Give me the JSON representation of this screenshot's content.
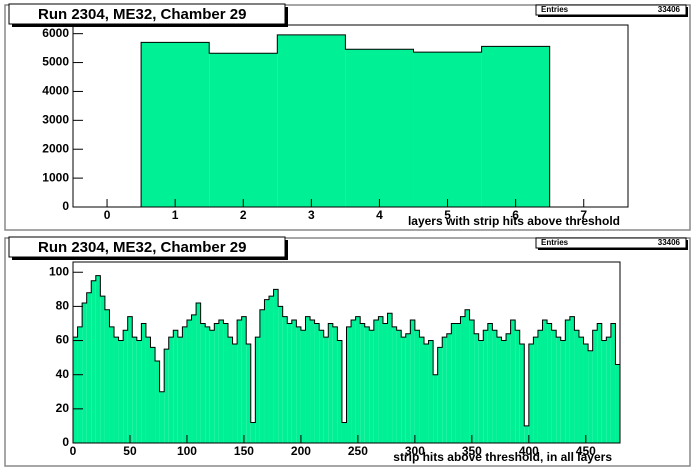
{
  "chart_data": [
    {
      "type": "histogram",
      "title": "Run 2304, ME32, Chamber 29",
      "stats_label": "Entries",
      "entries": 33406,
      "x_label": "layers with strip hits above threshold",
      "bins": [
        -0.5,
        0.5,
        1.5,
        2.5,
        3.5,
        4.5,
        5.5,
        6.5,
        7.5
      ],
      "values": [
        0,
        5700,
        5320,
        5960,
        5460,
        5360,
        5560,
        0
      ],
      "color": "#00f096",
      "xlim": [
        -0.5,
        7.65
      ],
      "xticks": [
        0,
        1,
        2,
        3,
        4,
        5,
        6,
        7
      ],
      "ylim": [
        0,
        6300
      ],
      "yticks": [
        0,
        1000,
        2000,
        3000,
        4000,
        5000,
        6000
      ]
    },
    {
      "type": "histogram",
      "title": "Run 2304, ME32, Chamber 29",
      "stats_label": "Entries",
      "entries": 33406,
      "x_label": "strip hits above threshold, in all layers",
      "bins": [
        0,
        4,
        8,
        12,
        16,
        20,
        24,
        28,
        32,
        36,
        40,
        44,
        48,
        52,
        56,
        60,
        64,
        68,
        72,
        76,
        80,
        84,
        88,
        92,
        96,
        100,
        104,
        108,
        112,
        116,
        120,
        124,
        128,
        132,
        136,
        140,
        144,
        148,
        152,
        156,
        160,
        164,
        168,
        172,
        176,
        180,
        184,
        188,
        192,
        196,
        200,
        204,
        208,
        212,
        216,
        220,
        224,
        228,
        232,
        236,
        240,
        244,
        248,
        252,
        256,
        260,
        264,
        268,
        272,
        276,
        280,
        284,
        288,
        292,
        296,
        300,
        304,
        308,
        312,
        316,
        320,
        324,
        328,
        332,
        336,
        340,
        344,
        348,
        352,
        356,
        360,
        364,
        368,
        372,
        376,
        380,
        384,
        388,
        392,
        396,
        400,
        404,
        408,
        412,
        416,
        420,
        424,
        428,
        432,
        436,
        440,
        444,
        448,
        452,
        456,
        460,
        464,
        468,
        472,
        476,
        480
      ],
      "values": [
        62,
        68,
        82,
        88,
        95,
        98,
        86,
        78,
        68,
        62,
        60,
        66,
        74,
        62,
        60,
        70,
        62,
        56,
        48,
        30,
        55,
        62,
        66,
        62,
        68,
        72,
        75,
        82,
        70,
        68,
        66,
        70,
        72,
        70,
        62,
        58,
        72,
        74,
        58,
        12,
        62,
        78,
        84,
        86,
        90,
        80,
        74,
        70,
        72,
        68,
        66,
        74,
        72,
        70,
        66,
        62,
        70,
        68,
        60,
        12,
        68,
        72,
        74,
        70,
        68,
        66,
        72,
        74,
        70,
        76,
        68,
        66,
        62,
        64,
        72,
        66,
        62,
        58,
        60,
        40,
        56,
        62,
        64,
        70,
        70,
        74,
        78,
        72,
        64,
        60,
        66,
        70,
        66,
        62,
        60,
        64,
        72,
        66,
        58,
        10,
        58,
        62,
        66,
        72,
        70,
        66,
        62,
        60,
        72,
        74,
        66,
        62,
        58,
        54,
        66,
        70,
        60,
        62,
        70,
        46
      ],
      "color": "#00f096",
      "xlim": [
        0,
        480
      ],
      "xticks": [
        0,
        50,
        100,
        150,
        200,
        250,
        300,
        350,
        400,
        450
      ],
      "ylim": [
        0,
        106
      ],
      "yticks": [
        0,
        20,
        40,
        60,
        80,
        100
      ]
    }
  ]
}
